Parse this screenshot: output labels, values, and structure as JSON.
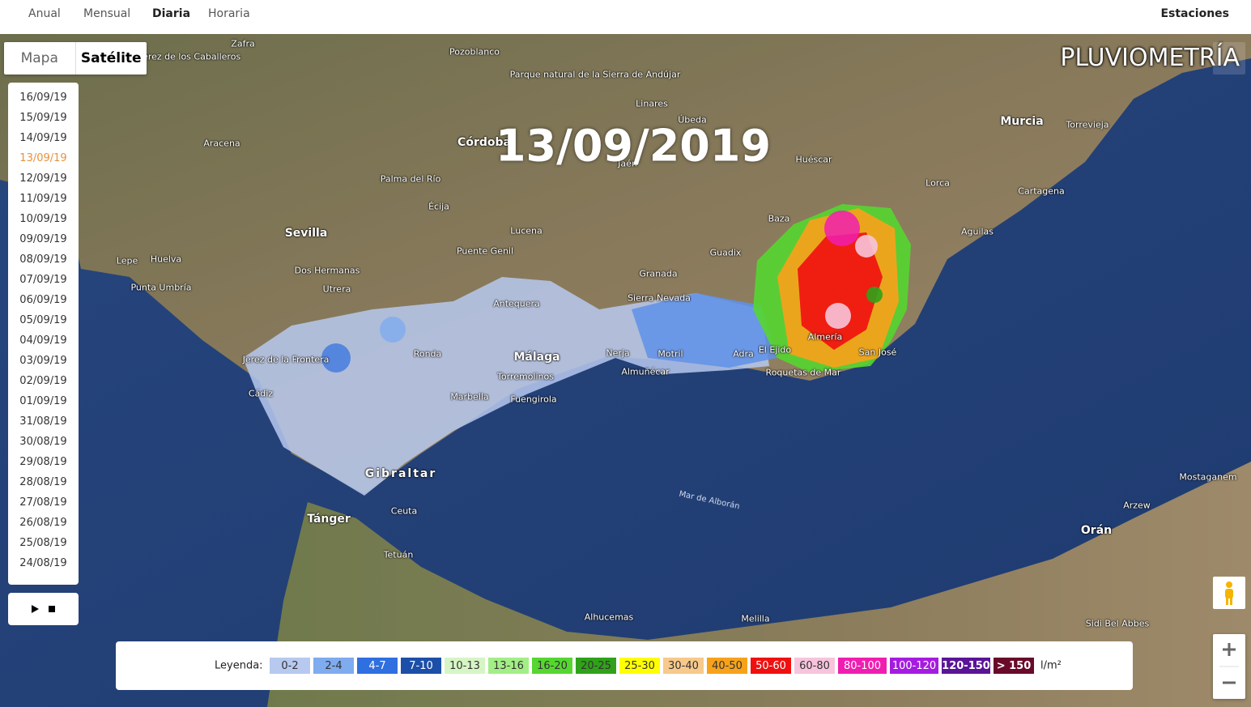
{
  "nav": {
    "tabs": [
      "Anual",
      "Mensual",
      "Diaria",
      "Horaria"
    ],
    "active_index": 2,
    "right": "Estaciones"
  },
  "map_type": {
    "options": [
      "Mapa",
      "Satélite"
    ],
    "active_index": 1
  },
  "brand": "PLUVIOMETRÍA",
  "current_date": "13/09/2019",
  "dates": {
    "items": [
      "16/09/19",
      "15/09/19",
      "14/09/19",
      "13/09/19",
      "12/09/19",
      "11/09/19",
      "10/09/19",
      "09/09/19",
      "08/09/19",
      "07/09/19",
      "06/09/19",
      "05/09/19",
      "04/09/19",
      "03/09/19",
      "02/09/19",
      "01/09/19",
      "31/08/19",
      "30/08/19",
      "29/08/19",
      "28/08/19",
      "27/08/19",
      "26/08/19",
      "25/08/19",
      "24/08/19"
    ],
    "selected_index": 3
  },
  "legend": {
    "label": "Leyenda:",
    "unit": "l/m²",
    "items": [
      {
        "label": "0-2",
        "color": "#b7c9ef"
      },
      {
        "label": "2-4",
        "color": "#7fabef"
      },
      {
        "label": "4-7",
        "color": "#2f6fe0"
      },
      {
        "label": "7-10",
        "color": "#1c4fa8"
      },
      {
        "label": "10-13",
        "color": "#d6f5c4"
      },
      {
        "label": "13-16",
        "color": "#a3ee86"
      },
      {
        "label": "16-20",
        "color": "#55d630"
      },
      {
        "label": "20-25",
        "color": "#2fa21a"
      },
      {
        "label": "25-30",
        "color": "#ffff00"
      },
      {
        "label": "30-40",
        "color": "#f7c98a"
      },
      {
        "label": "40-50",
        "color": "#f7a21a"
      },
      {
        "label": "50-60",
        "color": "#f01010"
      },
      {
        "label": "60-80",
        "color": "#f7c4dc"
      },
      {
        "label": "80-100",
        "color": "#f01eb0"
      },
      {
        "label": "100-120",
        "color": "#a51ce0"
      },
      {
        "label": "120-150",
        "color": "#5a1496"
      },
      {
        "label": "> 150",
        "color": "#6a0a2a"
      }
    ]
  },
  "map": {
    "labels": [
      "Zafra",
      "Jerez de los Caballeros",
      "Pozoblanco",
      "Parque natural de la Sierra de Andújar",
      "Córdoba",
      "Sevilla",
      "Huelva",
      "Jaén",
      "Linares",
      "Úbeda",
      "Murcia",
      "Torrevieja",
      "Cartagena",
      "Lorca",
      "Baza",
      "Huéscar",
      "Granada",
      "Guadix",
      "Lucena",
      "Antequera",
      "Málaga",
      "Marbella",
      "Ronda",
      "Jerez de la Frontera",
      "Cádiz",
      "Gibraltar",
      "Tánger",
      "Ceuta",
      "Tetuán",
      "Motril",
      "Almería",
      "Roquetas de Mar",
      "El Ejido",
      "Aguilas",
      "San José",
      "Nerja",
      "Almuñécar",
      "Mar de Alborán",
      "Orán",
      "Alhucemas",
      "Melilla",
      "Mostaganem",
      "Arzew",
      "Sidi Bel Abbes",
      "Écija",
      "Dos Hermanas",
      "Fuengirola",
      "Torremolinos",
      "Sierra Nevada",
      "Palma del Río",
      "Puente Genil",
      "Punta Umbría",
      "Lepe",
      "Aracena",
      "Utrera",
      "Adra"
    ]
  }
}
